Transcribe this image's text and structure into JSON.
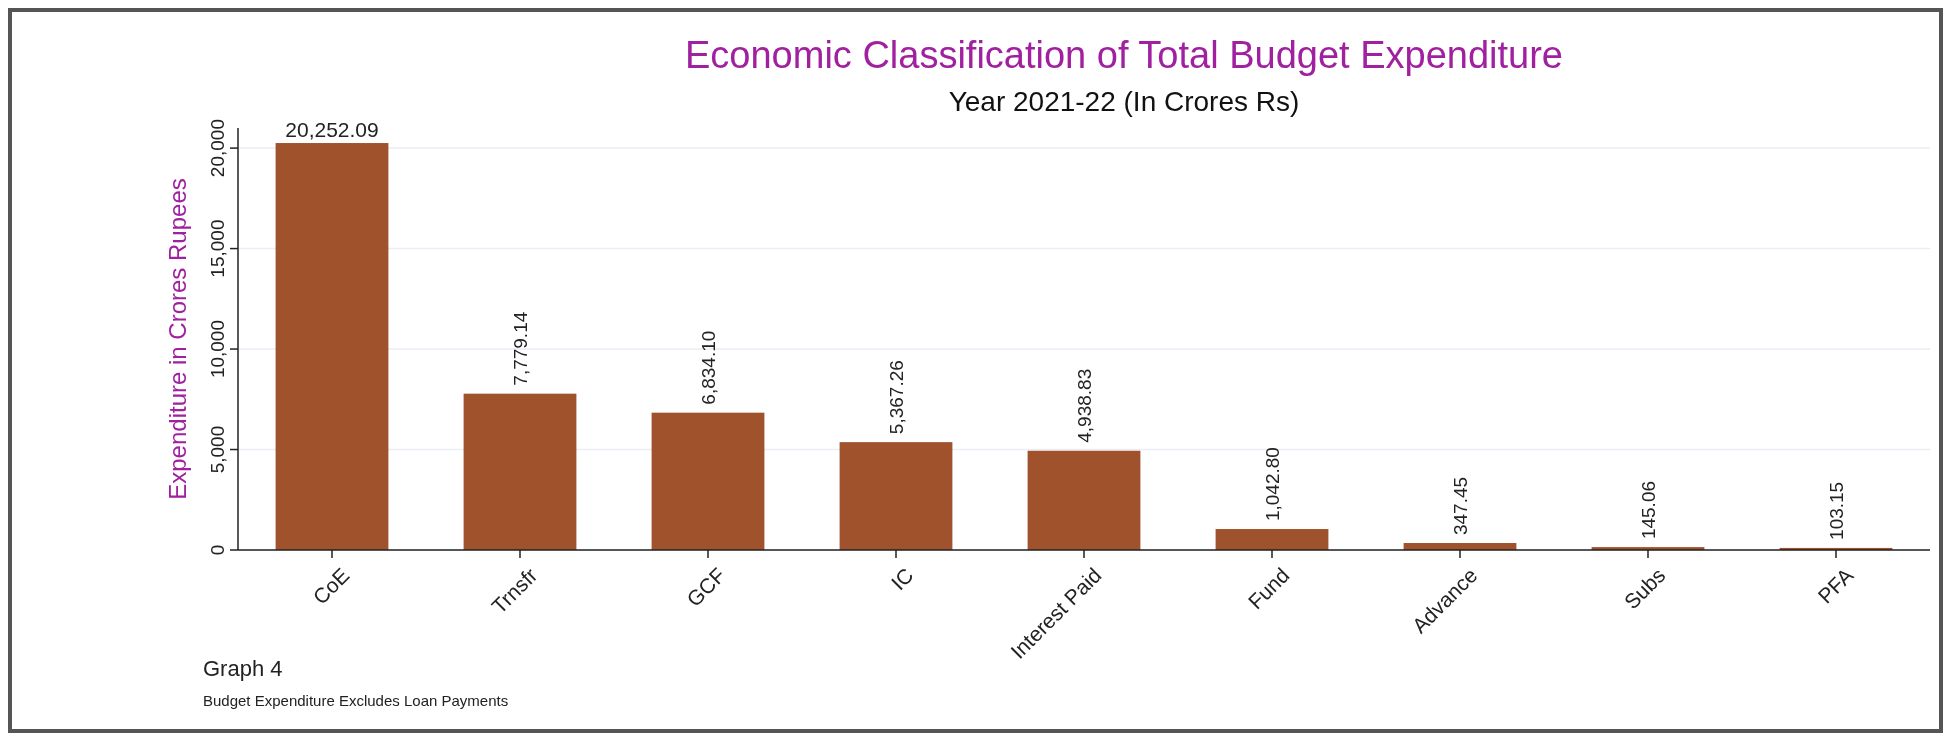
{
  "chart_data": {
    "type": "bar",
    "title": "Economic Classification of Total Budget Expenditure",
    "subtitle": "Year 2021-22 (In Crores Rs)",
    "ylabel": "Expenditure in Crores Rupees",
    "categories": [
      "CoE",
      "Trnsfr",
      "GCF",
      "IC",
      "Interest Paid",
      "Fund",
      "Advance",
      "Subs",
      "PFA"
    ],
    "values": [
      20252.09,
      7779.14,
      6834.1,
      5367.26,
      4938.83,
      1042.8,
      347.45,
      145.06,
      103.15
    ],
    "value_labels": [
      "20,252.09",
      "7,779.14",
      "6,834.10",
      "5,367.26",
      "4,938.83",
      "1,042.80",
      "347.45",
      "145.06",
      "103.15"
    ],
    "color": "#a0522d",
    "ylim": [
      0,
      21000
    ],
    "yticks": [
      {
        "value": 0,
        "label": "0"
      },
      {
        "value": 5000,
        "label": "5,000"
      },
      {
        "value": 10000,
        "label": "10,000"
      },
      {
        "value": 15000,
        "label": "15,000"
      },
      {
        "value": 20000,
        "label": "20,000"
      }
    ],
    "grid": "y",
    "annotations": [
      "Graph 4",
      "Budget Expenditure Excludes Loan Payments"
    ]
  }
}
